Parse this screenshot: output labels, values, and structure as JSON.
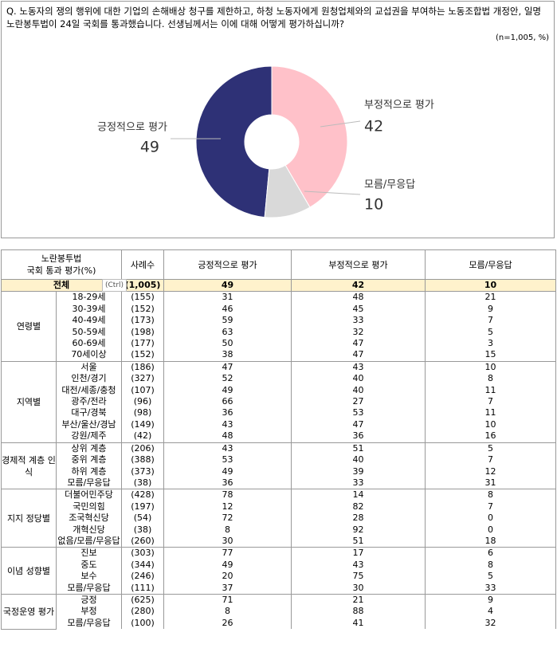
{
  "question": "Q. 노동자의 쟁의 행위에 대한 기업의 손해배상 청구를 제한하고, 하청 노동자에게 원청업체와의 교섭권을 부여하는 노동조합법 개정안, 일명 노란봉투법이 24일 국회를 통과했습니다. 선생님께서는 이에 대해 어떻게 평가하십니까?",
  "note": "(n=1,005, %)",
  "chart_data": {
    "type": "pie",
    "categories": [
      "긍정적으로 평가",
      "부정적으로 평가",
      "모름/무응답"
    ],
    "values": [
      49,
      42,
      10
    ],
    "colors": [
      "#2e3176",
      "#ffc1c9",
      "#d9d9d9"
    ]
  },
  "table": {
    "header": [
      [
        "노란봉투법",
        "국회 통과 평가(%)"
      ],
      "사례수",
      "긍정적으로 평가",
      "부정적으로 평가",
      "모름/무응답"
    ],
    "total": {
      "label": "전체",
      "n": "(1,005)",
      "values": [
        49,
        42,
        10
      ]
    },
    "popup": "(Ctrl)",
    "groups": [
      {
        "label": "연령별",
        "rows": [
          {
            "label": "18-29세",
            "n": "(155)",
            "values": [
              31,
              48,
              21
            ]
          },
          {
            "label": "30-39세",
            "n": "(152)",
            "values": [
              46,
              45,
              9
            ]
          },
          {
            "label": "40-49세",
            "n": "(173)",
            "values": [
              59,
              33,
              7
            ]
          },
          {
            "label": "50-59세",
            "n": "(198)",
            "values": [
              63,
              32,
              5
            ]
          },
          {
            "label": "60-69세",
            "n": "(177)",
            "values": [
              50,
              47,
              3
            ]
          },
          {
            "label": "70세이상",
            "n": "(152)",
            "values": [
              38,
              47,
              15
            ]
          }
        ]
      },
      {
        "label": "지역별",
        "rows": [
          {
            "label": "서울",
            "n": "(186)",
            "values": [
              47,
              43,
              10
            ]
          },
          {
            "label": "인천/경기",
            "n": "(327)",
            "values": [
              52,
              40,
              8
            ]
          },
          {
            "label": "대전/세종/충청",
            "n": "(107)",
            "values": [
              49,
              40,
              11
            ]
          },
          {
            "label": "광주/전라",
            "n": "(96)",
            "values": [
              66,
              27,
              7
            ]
          },
          {
            "label": "대구/경북",
            "n": "(98)",
            "values": [
              36,
              53,
              11
            ]
          },
          {
            "label": "부산/울산/경남",
            "n": "(149)",
            "values": [
              43,
              47,
              10
            ]
          },
          {
            "label": "강원/제주",
            "n": "(42)",
            "values": [
              48,
              36,
              16
            ]
          }
        ]
      },
      {
        "label": "경제적 계층 인식",
        "rows": [
          {
            "label": "상위 계층",
            "n": "(206)",
            "values": [
              43,
              51,
              5
            ]
          },
          {
            "label": "중위 계층",
            "n": "(388)",
            "values": [
              53,
              40,
              7
            ]
          },
          {
            "label": "하위 계층",
            "n": "(373)",
            "values": [
              49,
              39,
              12
            ]
          },
          {
            "label": "모름/무응답",
            "n": "(38)",
            "values": [
              36,
              33,
              31
            ]
          }
        ]
      },
      {
        "label": "지지 정당별",
        "rows": [
          {
            "label": "더불어민주당",
            "n": "(428)",
            "values": [
              78,
              14,
              8
            ]
          },
          {
            "label": "국민의힘",
            "n": "(197)",
            "values": [
              12,
              82,
              7
            ]
          },
          {
            "label": "조국혁신당",
            "n": "(54)",
            "values": [
              72,
              28,
              0
            ]
          },
          {
            "label": "개혁신당",
            "n": "(38)",
            "values": [
              8,
              92,
              0
            ]
          },
          {
            "label": "없음/모름/무응답",
            "n": "(260)",
            "values": [
              30,
              51,
              18
            ]
          }
        ]
      },
      {
        "label": "이념 성향별",
        "rows": [
          {
            "label": "진보",
            "n": "(303)",
            "values": [
              77,
              17,
              6
            ]
          },
          {
            "label": "중도",
            "n": "(344)",
            "values": [
              49,
              43,
              8
            ]
          },
          {
            "label": "보수",
            "n": "(246)",
            "values": [
              20,
              75,
              5
            ]
          },
          {
            "label": "모름/무응답",
            "n": "(111)",
            "values": [
              37,
              30,
              33
            ]
          }
        ]
      },
      {
        "label": "국정운영 평가",
        "rows": [
          {
            "label": "긍정",
            "n": "(625)",
            "values": [
              71,
              21,
              9
            ]
          },
          {
            "label": "부정",
            "n": "(280)",
            "values": [
              8,
              88,
              4
            ]
          },
          {
            "label": "모름/무응답",
            "n": "(100)",
            "values": [
              26,
              41,
              32
            ]
          }
        ]
      }
    ]
  }
}
